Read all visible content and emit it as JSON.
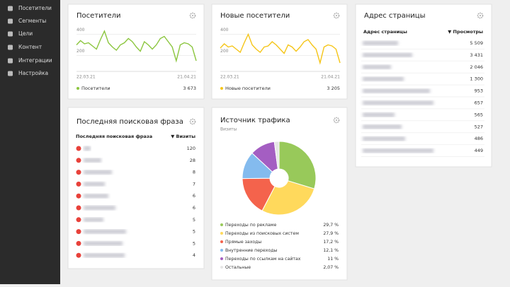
{
  "sidebar": {
    "items": [
      "Посетители",
      "Сегменты",
      "Цели",
      "Контент",
      "Интеграции",
      "Настройка"
    ]
  },
  "chart_data": [
    {
      "type": "line",
      "title": "Посетители",
      "categories": [
        "22.03.21",
        null,
        null,
        null,
        null,
        null,
        null,
        null,
        null,
        null,
        null,
        null,
        null,
        null,
        null,
        null,
        null,
        null,
        null,
        null,
        null,
        null,
        null,
        null,
        null,
        null,
        null,
        null,
        null,
        null,
        "21.04.21"
      ],
      "series": [
        {
          "name": "Посетители",
          "color": "#8cc63f",
          "total": {
            "value": 3673,
            "label": "3 673"
          },
          "values": [
            300,
            340,
            310,
            320,
            290,
            260,
            350,
            430,
            320,
            280,
            250,
            300,
            320,
            360,
            330,
            280,
            240,
            330,
            300,
            260,
            300,
            360,
            380,
            330,
            280,
            150,
            300,
            320,
            310,
            280,
            150
          ]
        }
      ],
      "ylim": [
        50,
        450
      ],
      "yticks": [
        200,
        400
      ],
      "grid": true
    },
    {
      "type": "line",
      "title": "Новые посетители",
      "categories": [
        "22.03.21",
        null,
        null,
        null,
        null,
        null,
        null,
        null,
        null,
        null,
        null,
        null,
        null,
        null,
        null,
        null,
        null,
        null,
        null,
        null,
        null,
        null,
        null,
        null,
        null,
        null,
        null,
        null,
        null,
        null,
        "21.04.21"
      ],
      "series": [
        {
          "name": "Новые посетители",
          "color": "#f5c518",
          "total": {
            "value": 3205,
            "label": "3 205"
          },
          "values": [
            270,
            310,
            280,
            290,
            260,
            230,
            320,
            400,
            300,
            260,
            230,
            280,
            290,
            330,
            300,
            260,
            220,
            300,
            280,
            240,
            280,
            330,
            350,
            300,
            260,
            130,
            280,
            300,
            290,
            260,
            130
          ]
        }
      ],
      "ylim": [
        50,
        450
      ],
      "yticks": [
        200,
        400
      ],
      "grid": true
    },
    {
      "type": "pie",
      "title": "Источник трафика",
      "subtitle": "Визиты",
      "categories": [
        "Переходы по рекламе",
        "Переходы из поисковых систем",
        "Прямые заходы",
        "Внутренние переходы",
        "Переходы по ссылкам на сайтах",
        "Остальные"
      ],
      "values": [
        29.7,
        27.9,
        17.2,
        12.1,
        11,
        2.07
      ],
      "value_labels": [
        "29,7 %",
        "27,9 %",
        "17,2 %",
        "12,1 %",
        "11 %",
        "2,07 %"
      ],
      "colors": [
        "#98c95a",
        "#ffd95c",
        "#f4634c",
        "#84bbee",
        "#a45ec2",
        "#e6e6e6"
      ]
    }
  ],
  "pages_table": {
    "title": "Адрес страницы",
    "columns": [
      "Адрес страницы",
      "▼ Просмотры"
    ],
    "views": [
      "5 509",
      "3 431",
      "2 046",
      "1 300",
      "953",
      "657",
      "565",
      "527",
      "486",
      "449"
    ]
  },
  "search_table": {
    "title": "Последняя поисковая фраза",
    "columns": [
      "Последняя поисковая фраза",
      "▼ Визиты"
    ],
    "visits": [
      "120",
      "28",
      "8",
      "7",
      "6",
      "6",
      "5",
      "5",
      "5",
      "4"
    ]
  }
}
